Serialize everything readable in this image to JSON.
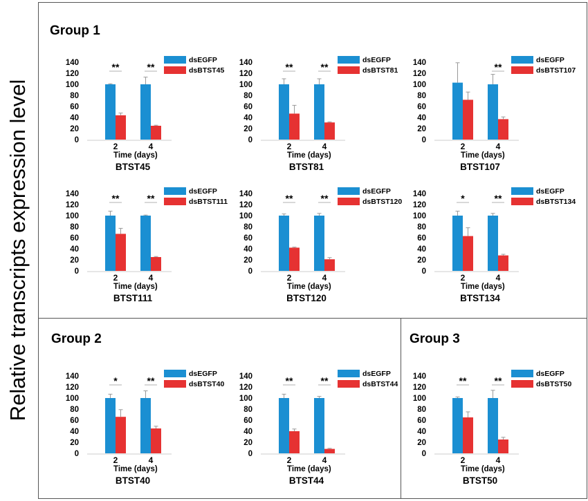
{
  "figure": {
    "y_axis_label": "Relative transcripts expression level",
    "groups": [
      {
        "title": "Group 1"
      },
      {
        "title": "Group 2"
      },
      {
        "title": "Group 3"
      }
    ],
    "colors": {
      "control": "#1b8fd2",
      "treatment": "#e63232",
      "error_bar": "#999999"
    }
  },
  "chart_data": [
    {
      "type": "bar",
      "title": "BTST45",
      "xlabel": "Time (days)",
      "ylabel": "",
      "ylim": [
        0,
        140
      ],
      "yticks": [
        0,
        20,
        40,
        60,
        80,
        100,
        120,
        140
      ],
      "categories": [
        "2",
        "4"
      ],
      "series": [
        {
          "name": "dsEGFP",
          "values": [
            100,
            100
          ],
          "errors": [
            1,
            13
          ]
        },
        {
          "name": "dsBTST45",
          "values": [
            44,
            25
          ],
          "errors": [
            4,
            1
          ]
        }
      ],
      "significance": [
        "**",
        "**"
      ]
    },
    {
      "type": "bar",
      "title": "BTST81",
      "xlabel": "Time (days)",
      "ylabel": "",
      "ylim": [
        0,
        140
      ],
      "yticks": [
        0,
        20,
        40,
        60,
        80,
        100,
        120,
        140
      ],
      "categories": [
        "2",
        "4"
      ],
      "series": [
        {
          "name": "dsEGFP",
          "values": [
            100,
            100
          ],
          "errors": [
            10,
            10
          ]
        },
        {
          "name": "dsBTST81",
          "values": [
            47,
            31
          ],
          "errors": [
            15,
            1
          ]
        }
      ],
      "significance": [
        "**",
        "**"
      ]
    },
    {
      "type": "bar",
      "title": "BTST107",
      "xlabel": "Time (days)",
      "ylabel": "",
      "ylim": [
        0,
        140
      ],
      "yticks": [
        0,
        20,
        40,
        60,
        80,
        100,
        120,
        140
      ],
      "categories": [
        "2",
        "4"
      ],
      "series": [
        {
          "name": "dsEGFP",
          "values": [
            103,
            100
          ],
          "errors": [
            36,
            18
          ]
        },
        {
          "name": "dsBTST107",
          "values": [
            72,
            37
          ],
          "errors": [
            14,
            4
          ]
        }
      ],
      "significance": [
        "",
        "**"
      ]
    },
    {
      "type": "bar",
      "title": "BTST111",
      "xlabel": "Time (days)",
      "ylabel": "",
      "ylim": [
        0,
        140
      ],
      "yticks": [
        0,
        20,
        40,
        60,
        80,
        100,
        120,
        140
      ],
      "categories": [
        "2",
        "4"
      ],
      "series": [
        {
          "name": "dsEGFP",
          "values": [
            100,
            100
          ],
          "errors": [
            8,
            1
          ]
        },
        {
          "name": "dsBTST111",
          "values": [
            67,
            25
          ],
          "errors": [
            10,
            1
          ]
        }
      ],
      "significance": [
        "**",
        "**"
      ]
    },
    {
      "type": "bar",
      "title": "BTST120",
      "xlabel": "Time (days)",
      "ylabel": "",
      "ylim": [
        0,
        140
      ],
      "yticks": [
        0,
        20,
        40,
        60,
        80,
        100,
        120,
        140
      ],
      "categories": [
        "2",
        "4"
      ],
      "series": [
        {
          "name": "dsEGFP",
          "values": [
            100,
            100
          ],
          "errors": [
            3,
            4
          ]
        },
        {
          "name": "dsBTST120",
          "values": [
            42,
            21
          ],
          "errors": [
            1,
            3
          ]
        }
      ],
      "significance": [
        "**",
        "**"
      ]
    },
    {
      "type": "bar",
      "title": "BTST134",
      "xlabel": "Time (days)",
      "ylabel": "",
      "ylim": [
        0,
        140
      ],
      "yticks": [
        0,
        20,
        40,
        60,
        80,
        100,
        120,
        140
      ],
      "categories": [
        "2",
        "4"
      ],
      "series": [
        {
          "name": "dsEGFP",
          "values": [
            100,
            100
          ],
          "errors": [
            8,
            4
          ]
        },
        {
          "name": "dsBTST134",
          "values": [
            63,
            28
          ],
          "errors": [
            15,
            2
          ]
        }
      ],
      "significance": [
        "*",
        "**"
      ]
    },
    {
      "type": "bar",
      "title": "BTST40",
      "xlabel": "Time (days)",
      "ylabel": "",
      "ylim": [
        0,
        140
      ],
      "yticks": [
        0,
        20,
        40,
        60,
        80,
        100,
        120,
        140
      ],
      "categories": [
        "2",
        "4"
      ],
      "series": [
        {
          "name": "dsEGFP",
          "values": [
            100,
            100
          ],
          "errors": [
            7,
            13
          ]
        },
        {
          "name": "dsBTST40",
          "values": [
            66,
            45
          ],
          "errors": [
            13,
            4
          ]
        }
      ],
      "significance": [
        "*",
        "**"
      ]
    },
    {
      "type": "bar",
      "title": "BTST44",
      "xlabel": "Time (days)",
      "ylabel": "",
      "ylim": [
        0,
        140
      ],
      "yticks": [
        0,
        20,
        40,
        60,
        80,
        100,
        120,
        140
      ],
      "categories": [
        "2",
        "4"
      ],
      "series": [
        {
          "name": "dsEGFP",
          "values": [
            100,
            100
          ],
          "errors": [
            7,
            3
          ]
        },
        {
          "name": "dsBTST44",
          "values": [
            40,
            8
          ],
          "errors": [
            4,
            1
          ]
        }
      ],
      "significance": [
        "**",
        "**"
      ]
    },
    {
      "type": "bar",
      "title": "BTST50",
      "xlabel": "Time (days)",
      "ylabel": "",
      "ylim": [
        0,
        140
      ],
      "yticks": [
        0,
        20,
        40,
        60,
        80,
        100,
        120,
        140
      ],
      "categories": [
        "2",
        "4"
      ],
      "series": [
        {
          "name": "dsEGFP",
          "values": [
            100,
            100
          ],
          "errors": [
            2,
            14
          ]
        },
        {
          "name": "dsBTST50",
          "values": [
            65,
            25
          ],
          "errors": [
            10,
            4
          ]
        }
      ],
      "significance": [
        "**",
        "**"
      ]
    }
  ]
}
